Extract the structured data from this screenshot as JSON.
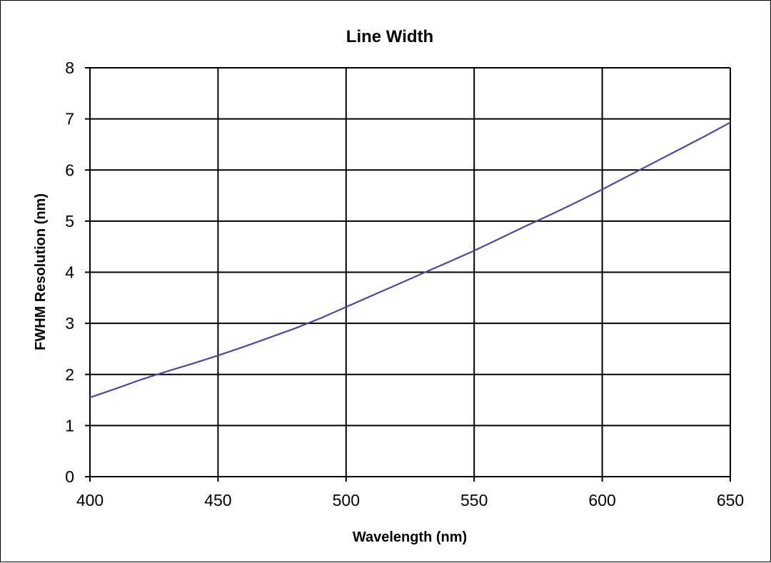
{
  "chart_data": {
    "type": "line",
    "title": "Line Width",
    "xlabel": "Wavelength (nm)",
    "ylabel": "FWHM Resolution (nm)",
    "xlim": [
      400,
      650
    ],
    "ylim": [
      0,
      8
    ],
    "xticks": [
      400,
      450,
      500,
      550,
      600,
      650
    ],
    "yticks": [
      0,
      1,
      2,
      3,
      4,
      5,
      6,
      7,
      8
    ],
    "grid": true,
    "legend": "none",
    "line_color": "#4a4a9c",
    "series": [
      {
        "x": [
          400,
          410,
          420,
          430,
          440,
          450,
          460,
          470,
          480,
          490,
          500,
          510,
          520,
          530,
          540,
          550,
          560,
          570,
          580,
          590,
          600,
          610,
          620,
          630,
          640,
          650
        ],
        "values": [
          1.55,
          1.72,
          1.9,
          2.06,
          2.21,
          2.37,
          2.54,
          2.72,
          2.9,
          3.1,
          3.32,
          3.54,
          3.76,
          3.98,
          4.2,
          4.42,
          4.66,
          4.9,
          5.13,
          5.37,
          5.62,
          5.88,
          6.14,
          6.4,
          6.66,
          6.93
        ]
      }
    ]
  }
}
